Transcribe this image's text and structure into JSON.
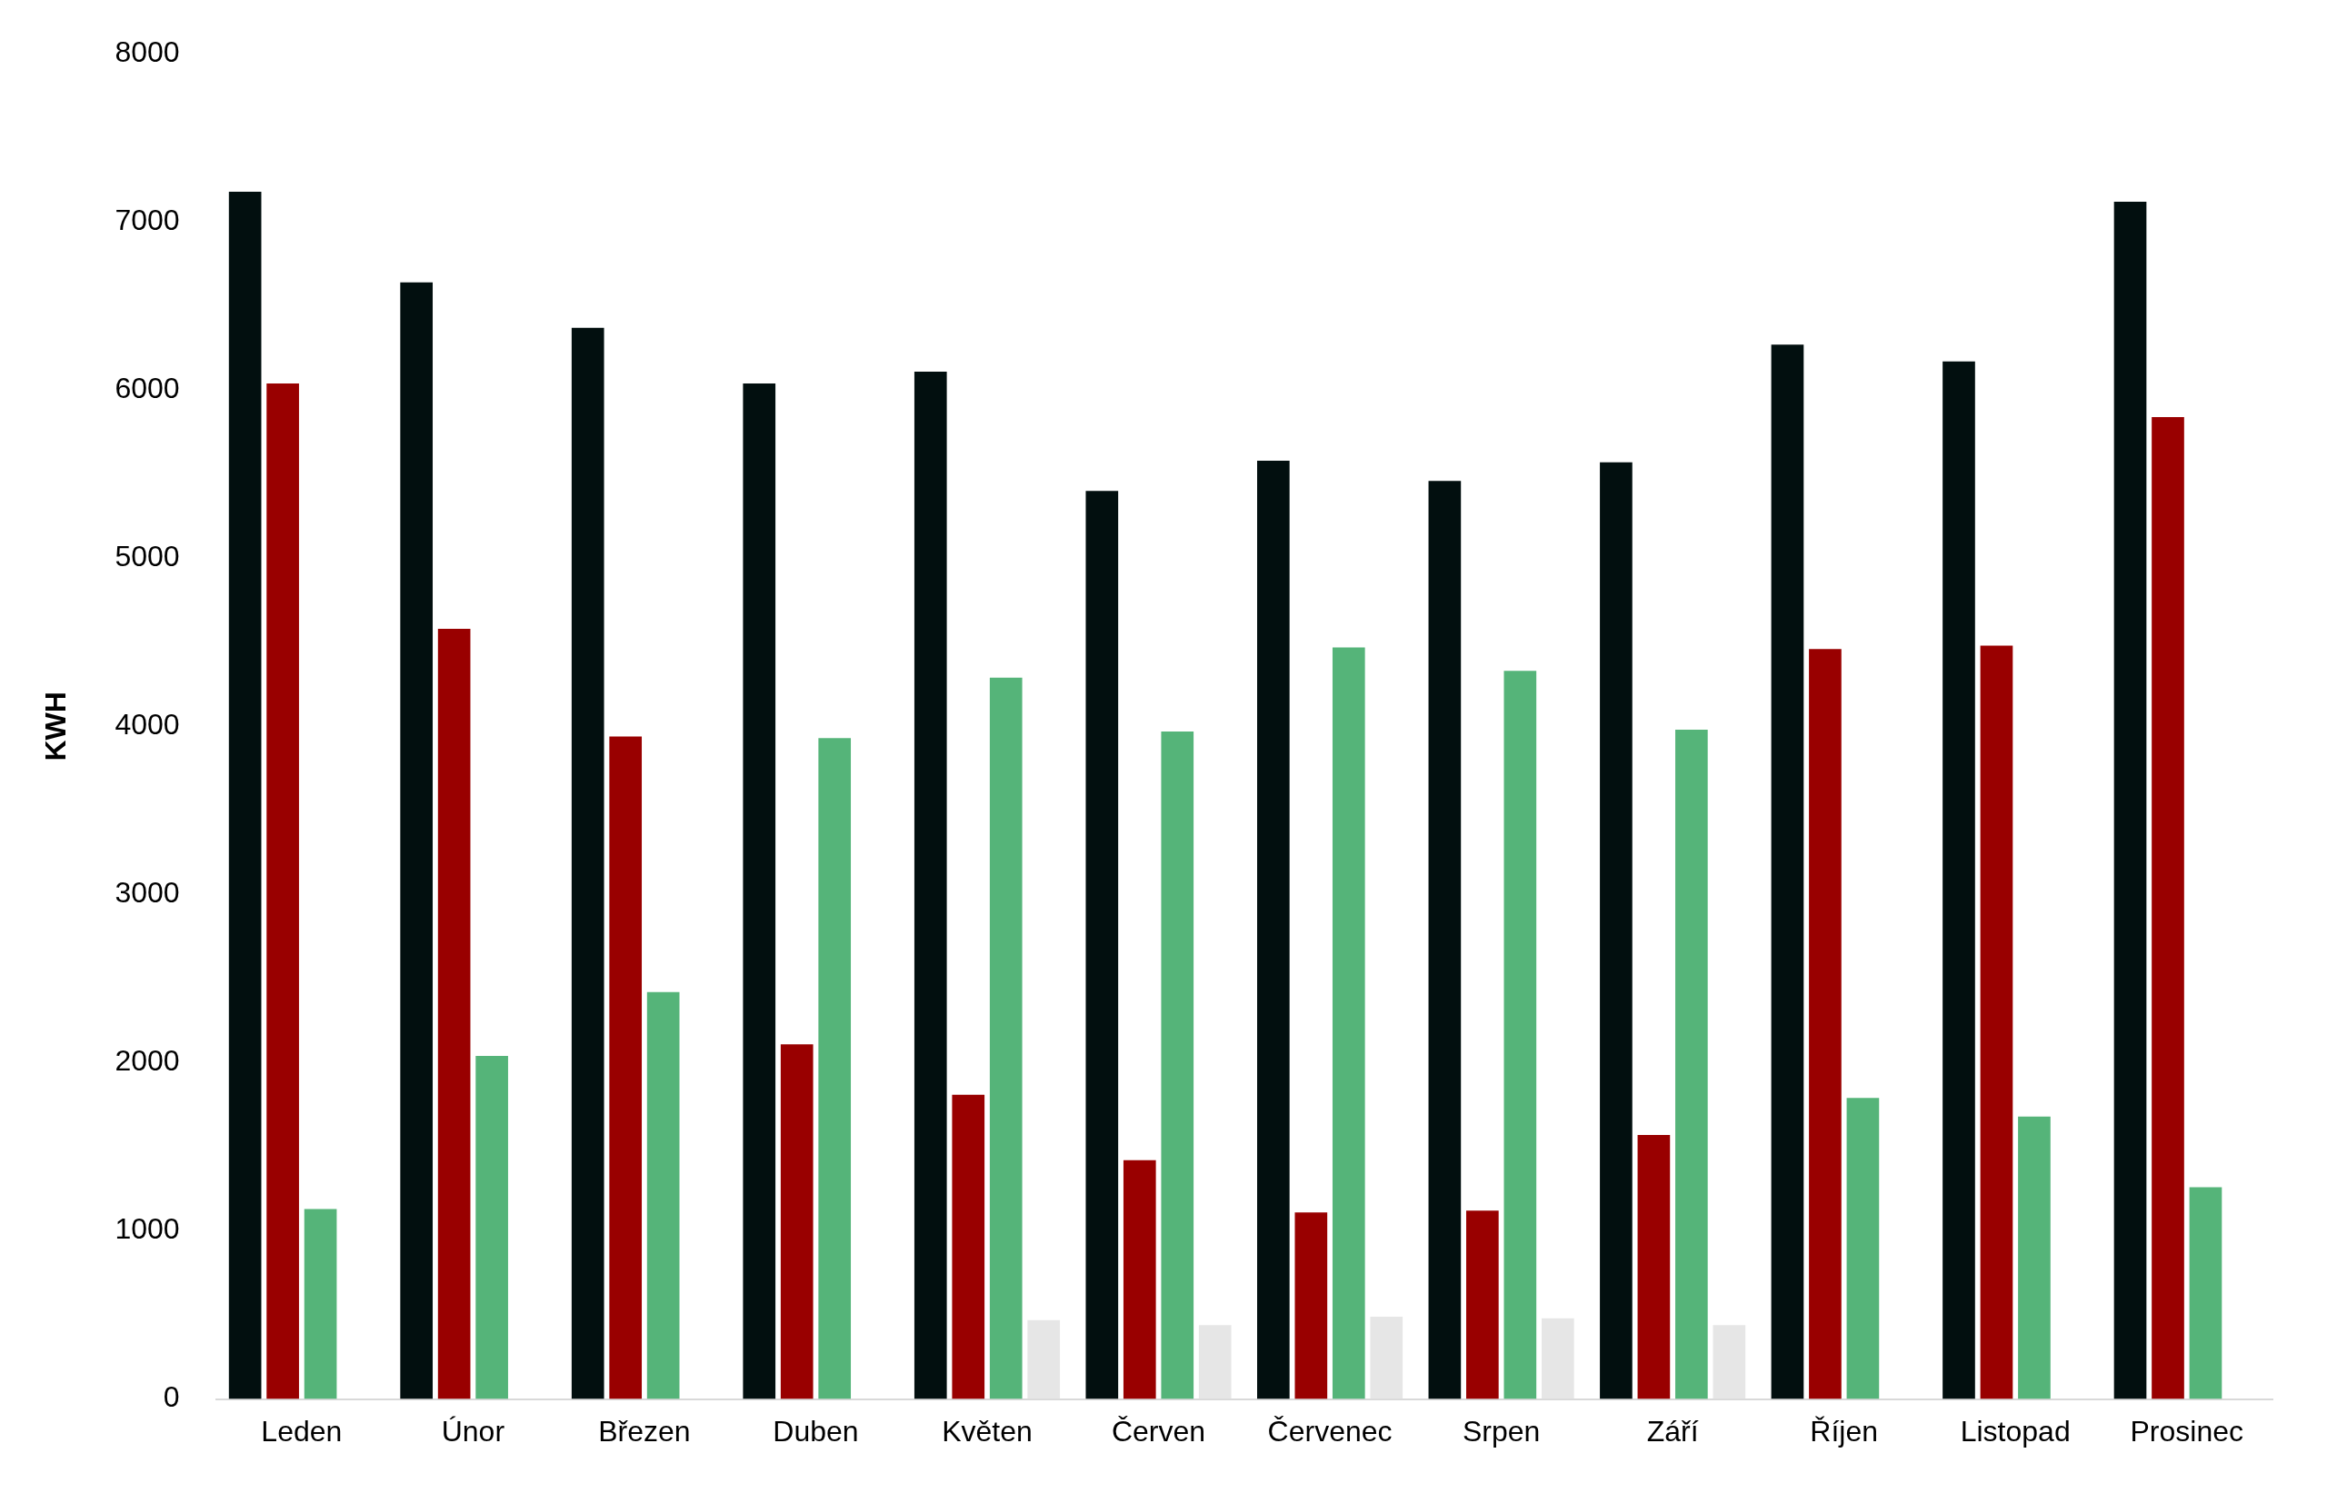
{
  "chart_data": {
    "type": "bar",
    "ylabel": "KWH",
    "categories": [
      "Leden",
      "Únor",
      "Březen",
      "Duben",
      "Květen",
      "Červen",
      "Červenec",
      "Srpen",
      "Září",
      "Říjen",
      "Listopad",
      "Prosinec"
    ],
    "series": [
      {
        "color": "#020f0f",
        "values": [
          7180,
          6640,
          6370,
          6040,
          6110,
          5400,
          5580,
          5460,
          5570,
          6270,
          6170,
          7120
        ]
      },
      {
        "color": "#990000",
        "values": [
          6040,
          4580,
          3940,
          2110,
          1810,
          1420,
          1110,
          1120,
          1570,
          4460,
          4480,
          5840
        ]
      },
      {
        "color": "#55b479",
        "values": [
          1130,
          2040,
          2420,
          3930,
          4290,
          3970,
          4470,
          4330,
          3980,
          1790,
          1680,
          1260
        ]
      },
      {
        "color": "#e6e6e6",
        "values": [
          null,
          null,
          null,
          null,
          470,
          440,
          490,
          480,
          440,
          null,
          null,
          null
        ]
      }
    ],
    "ylim": [
      0,
      8000
    ],
    "yticks": [
      0,
      1000,
      2000,
      3000,
      4000,
      5000,
      6000,
      7000,
      8000
    ],
    "grid": false,
    "legend": false
  }
}
